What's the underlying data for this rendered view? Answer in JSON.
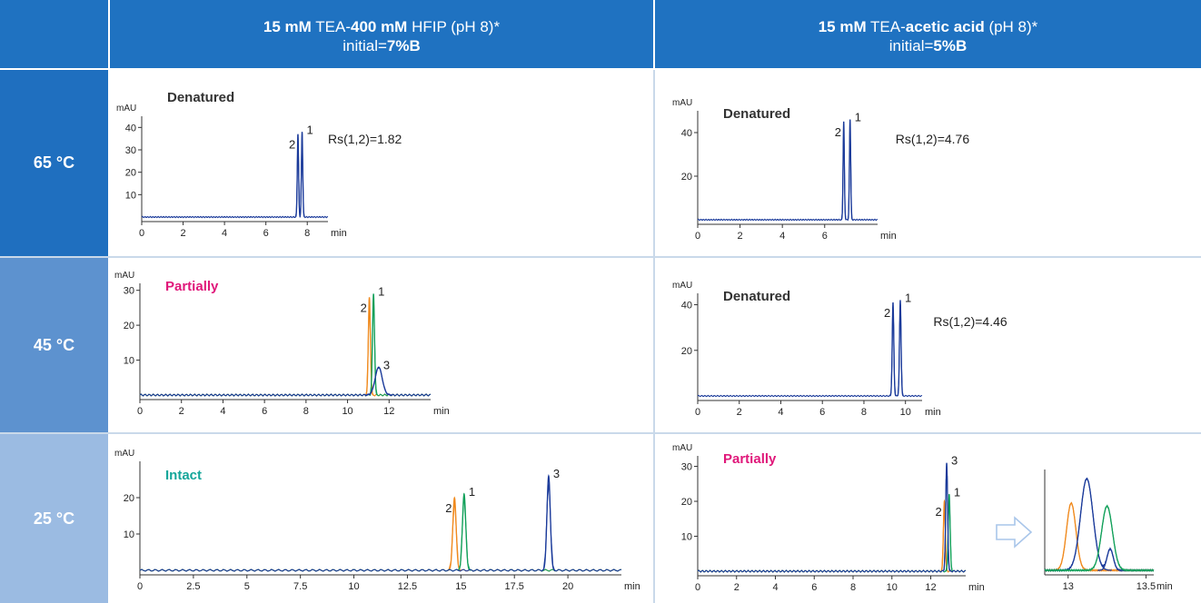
{
  "header": {
    "left": {
      "p1": "15 mM",
      "p2": " TEA-",
      "p3": "400 mM",
      "p4": " HFIP (pH 8)*",
      "l2a": "initial=",
      "l2b": "7%B"
    },
    "right": {
      "p1": "15 mM",
      "p2": " TEA-",
      "p3": "acetic acid",
      "p4": " (pH 8)*",
      "l2a": "initial=",
      "l2b": "5%B"
    }
  },
  "rows": [
    {
      "label": "65 °C",
      "color": "#1f6fbf"
    },
    {
      "label": "45 °C",
      "color": "#5d92cf"
    },
    {
      "label": "25 °C",
      "color": "#9bbbe2"
    }
  ],
  "colors": {
    "blue": "#1a3a9a",
    "green": "#12a05a",
    "orange": "#f08a1e",
    "status_denatured": "#333333",
    "status_partially": "#e0187a",
    "status_intact": "#14a69a",
    "arrow": "#a9c6ea"
  },
  "chart_data": [
    {
      "id": "c1",
      "type": "line",
      "ylabel": "mAU",
      "xunit": "min",
      "xlim": [
        0,
        9
      ],
      "ylim": [
        0,
        45
      ],
      "xticks": [
        "0",
        "2",
        "4",
        "6",
        "8"
      ],
      "yticks": [
        "10",
        "20",
        "30",
        "40"
      ],
      "status": "Denatured",
      "status_color": "#333333",
      "rs": "Rs(1,2)=1.82",
      "peaks": [
        {
          "label": "2",
          "x": 7.55,
          "h": 37,
          "color": "#1a3a9a"
        },
        {
          "label": "1",
          "x": 7.75,
          "h": 38,
          "color": "#1a3a9a"
        }
      ]
    },
    {
      "id": "c2",
      "type": "line",
      "ylabel": "mAU",
      "xunit": "min",
      "xlim": [
        0,
        8.5
      ],
      "ylim": [
        0,
        50
      ],
      "xticks": [
        "0",
        "2",
        "4",
        "6"
      ],
      "yticks": [
        "20",
        "40"
      ],
      "status": "Denatured",
      "status_color": "#333333",
      "rs": "Rs(1,2)=4.76",
      "peaks": [
        {
          "label": "2",
          "x": 6.9,
          "h": 45,
          "color": "#1a3a9a"
        },
        {
          "label": "1",
          "x": 7.2,
          "h": 46,
          "color": "#1a3a9a"
        }
      ]
    },
    {
      "id": "c3",
      "type": "line",
      "ylabel": "mAU",
      "xunit": "min",
      "xlim": [
        0,
        14
      ],
      "ylim": [
        0,
        32
      ],
      "xticks": [
        "0",
        "2",
        "4",
        "6",
        "8",
        "10",
        "12"
      ],
      "yticks": [
        "10",
        "20",
        "30"
      ],
      "status": "Partially",
      "status_color": "#e0187a",
      "peaks": [
        {
          "label": "2",
          "x": 11.05,
          "h": 28,
          "color": "#f08a1e"
        },
        {
          "label": "1",
          "x": 11.25,
          "h": 29,
          "color": "#12a05a"
        },
        {
          "label": "3",
          "x": 11.5,
          "h": 8,
          "color": "#1a3a9a",
          "wide": true
        }
      ]
    },
    {
      "id": "c4",
      "type": "line",
      "ylabel": "mAU",
      "xunit": "min",
      "xlim": [
        0,
        10.8
      ],
      "ylim": [
        0,
        45
      ],
      "xticks": [
        "0",
        "2",
        "4",
        "6",
        "8",
        "10"
      ],
      "yticks": [
        "20",
        "40"
      ],
      "status": "Denatured",
      "status_color": "#333333",
      "rs": "Rs(1,2)=4.46",
      "peaks": [
        {
          "label": "2",
          "x": 9.4,
          "h": 41,
          "color": "#1a3a9a"
        },
        {
          "label": "1",
          "x": 9.75,
          "h": 42,
          "color": "#1a3a9a"
        }
      ]
    },
    {
      "id": "c5",
      "type": "line",
      "ylabel": "mAU",
      "xunit": "min",
      "xlim": [
        0,
        22.5
      ],
      "ylim": [
        0,
        30
      ],
      "xticks": [
        "0",
        "2.5",
        "5",
        "7.5",
        "10",
        "12.5",
        "15",
        "17.5",
        "20"
      ],
      "yticks": [
        "10",
        "20"
      ],
      "status": "Intact",
      "status_color": "#14a69a",
      "peaks": [
        {
          "label": "2",
          "x": 14.7,
          "h": 20,
          "color": "#f08a1e"
        },
        {
          "label": "1",
          "x": 15.15,
          "h": 21,
          "color": "#12a05a"
        },
        {
          "label": "3",
          "x": 19.1,
          "h": 26,
          "color": "#1a3a9a"
        }
      ]
    },
    {
      "id": "c6",
      "type": "line",
      "ylabel": "mAU",
      "xunit": "min",
      "xlim": [
        0,
        13.8
      ],
      "ylim": [
        0,
        33
      ],
      "xticks": [
        "0",
        "2",
        "4",
        "6",
        "8",
        "10",
        "12"
      ],
      "yticks": [
        "10",
        "20",
        "30"
      ],
      "status": "Partially",
      "status_color": "#e0187a",
      "peaks": [
        {
          "label": "2",
          "x": 12.7,
          "h": 20,
          "color": "#f08a1e"
        },
        {
          "label": "1",
          "x": 12.95,
          "h": 22,
          "color": "#12a05a"
        },
        {
          "label": "3",
          "x": 12.82,
          "h": 31,
          "color": "#1a3a9a"
        }
      ]
    },
    {
      "id": "c7",
      "type": "line",
      "xunit": "min",
      "xlim": [
        12.85,
        13.55
      ],
      "ylim": [
        0,
        33
      ],
      "xticks": [
        "13",
        "13.5"
      ],
      "peaks": [
        {
          "x": 13.02,
          "h": 22,
          "color": "#f08a1e",
          "w": 0.03
        },
        {
          "x": 13.12,
          "h": 30,
          "color": "#1a3a9a",
          "w": 0.04
        },
        {
          "x": 13.27,
          "h": 7,
          "color": "#1a3a9a",
          "w": 0.02
        },
        {
          "x": 13.25,
          "h": 21,
          "color": "#12a05a",
          "w": 0.035
        }
      ]
    }
  ]
}
